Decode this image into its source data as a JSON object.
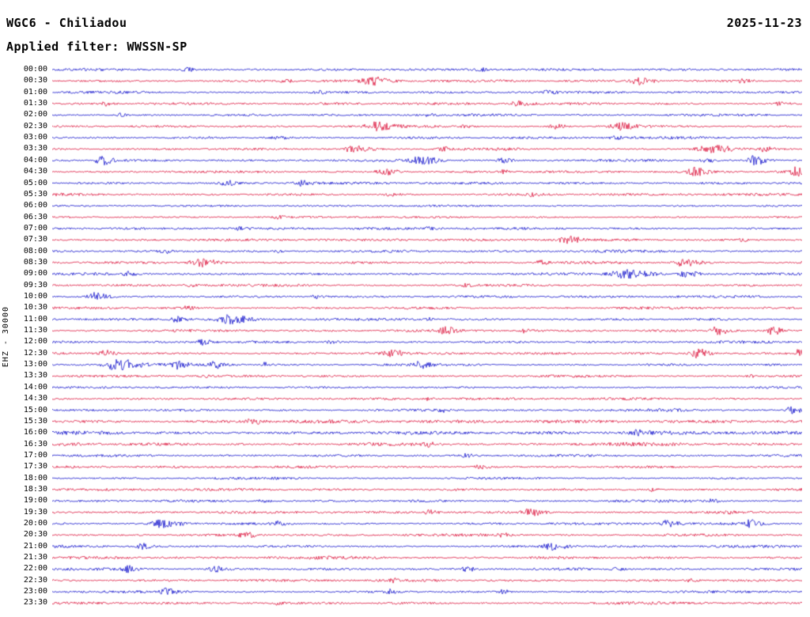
{
  "header": {
    "station": "WGC6 - Chiliadou",
    "date": "2025-11-23",
    "filter": "Applied filter: WWSSN-SP"
  },
  "axis": {
    "left_label": "EHZ - 30000"
  },
  "chart_data": {
    "type": "line",
    "subtype": "helicorder",
    "title": "WGC6 - Chiliadou",
    "subtitle": "Applied filter: WWSSN-SP",
    "date": "2025-11-23",
    "channel": "EHZ",
    "scale": 30000,
    "rows": 48,
    "minutes_per_row": 30,
    "x_range_minutes": [
      0,
      30
    ],
    "colors": {
      "even": "#1111cc",
      "odd": "#dc143c"
    },
    "base_noise_amp": 1.25,
    "clip": 6.9,
    "row_labels": [
      "00:00",
      "00:30",
      "01:00",
      "01:30",
      "02:00",
      "02:30",
      "03:00",
      "03:30",
      "04:00",
      "04:30",
      "05:00",
      "05:30",
      "06:00",
      "06:30",
      "07:00",
      "07:30",
      "08:00",
      "08:30",
      "09:00",
      "09:30",
      "10:00",
      "10:30",
      "11:00",
      "11:30",
      "12:00",
      "12:30",
      "13:00",
      "13:30",
      "14:00",
      "14:30",
      "15:00",
      "15:30",
      "16:00",
      "16:30",
      "17:00",
      "17:30",
      "18:00",
      "18:30",
      "19:00",
      "19:30",
      "20:00",
      "20:30",
      "21:00",
      "21:30",
      "22:00",
      "22:30",
      "23:00",
      "23:30"
    ],
    "noise_mult": {
      "12": 0.8,
      "13": 0.8,
      "28": 0.85,
      "31": 1.35,
      "32": 1.45,
      "33": 1.35,
      "36": 0.9,
      "43": 1.15,
      "47": 1.05
    },
    "events": [
      [
        0,
        0.18,
        2.2,
        0.01
      ],
      [
        0,
        0.57,
        2.0,
        0.008
      ],
      [
        1,
        0.31,
        2.2,
        0.008
      ],
      [
        1,
        0.425,
        4.5,
        0.018
      ],
      [
        1,
        0.78,
        4.2,
        0.015
      ],
      [
        1,
        0.92,
        2.2,
        0.008
      ],
      [
        2,
        0.35,
        2.0,
        0.01
      ],
      [
        2,
        0.66,
        2.0,
        0.008
      ],
      [
        3,
        0.07,
        2.5,
        0.008
      ],
      [
        3,
        0.62,
        3.0,
        0.012
      ],
      [
        3,
        0.97,
        2.5,
        0.008
      ],
      [
        4,
        0.09,
        2.2,
        0.006
      ],
      [
        4,
        0.5,
        1.8,
        0.006
      ],
      [
        5,
        0.43,
        4.5,
        0.018
      ],
      [
        5,
        0.55,
        2.5,
        0.008
      ],
      [
        5,
        0.67,
        3.0,
        0.01
      ],
      [
        5,
        0.755,
        4.2,
        0.014
      ],
      [
        6,
        0.3,
        1.8,
        0.01
      ],
      [
        6,
        0.75,
        1.8,
        0.008
      ],
      [
        7,
        0.4,
        4.0,
        0.018
      ],
      [
        7,
        0.52,
        2.5,
        0.008
      ],
      [
        7,
        0.875,
        5.0,
        0.02
      ],
      [
        7,
        0.95,
        3.0,
        0.008
      ],
      [
        8,
        0.065,
        5.5,
        0.012
      ],
      [
        8,
        0.49,
        4.5,
        0.02
      ],
      [
        8,
        0.6,
        3.0,
        0.01
      ],
      [
        8,
        0.87,
        3.0,
        0.008
      ],
      [
        8,
        0.935,
        6.0,
        0.012
      ],
      [
        9,
        0.44,
        4.0,
        0.015
      ],
      [
        9,
        0.6,
        2.5,
        0.008
      ],
      [
        9,
        0.855,
        5.5,
        0.012
      ],
      [
        9,
        0.99,
        5.5,
        0.008
      ],
      [
        10,
        0.23,
        3.5,
        0.01
      ],
      [
        10,
        0.33,
        3.0,
        0.012
      ],
      [
        11,
        0.45,
        2.2,
        0.008
      ],
      [
        11,
        0.64,
        2.0,
        0.008
      ],
      [
        13,
        0.3,
        1.8,
        0.006
      ],
      [
        14,
        0.25,
        2.0,
        0.008
      ],
      [
        14,
        0.5,
        1.8,
        0.006
      ],
      [
        15,
        0.685,
        4.5,
        0.015
      ],
      [
        15,
        0.92,
        2.2,
        0.006
      ],
      [
        16,
        0.15,
        2.0,
        0.008
      ],
      [
        16,
        0.3,
        1.8,
        0.006
      ],
      [
        17,
        0.195,
        5.5,
        0.018
      ],
      [
        17,
        0.65,
        3.0,
        0.01
      ],
      [
        17,
        0.84,
        5.0,
        0.018
      ],
      [
        18,
        0.1,
        2.5,
        0.008
      ],
      [
        18,
        0.76,
        5.5,
        0.025
      ],
      [
        18,
        0.845,
        4.5,
        0.012
      ],
      [
        19,
        0.18,
        2.2,
        0.008
      ],
      [
        19,
        0.55,
        2.0,
        0.006
      ],
      [
        20,
        0.055,
        5.0,
        0.015
      ],
      [
        20,
        0.35,
        2.0,
        0.006
      ],
      [
        21,
        0.18,
        2.2,
        0.008
      ],
      [
        22,
        0.165,
        3.5,
        0.01
      ],
      [
        22,
        0.235,
        5.0,
        0.02
      ],
      [
        22,
        0.5,
        2.2,
        0.006
      ],
      [
        23,
        0.525,
        4.0,
        0.012
      ],
      [
        23,
        0.63,
        2.5,
        0.008
      ],
      [
        23,
        0.885,
        5.5,
        0.012
      ],
      [
        23,
        0.96,
        5.0,
        0.01
      ],
      [
        24,
        0.2,
        3.5,
        0.01
      ],
      [
        24,
        0.37,
        2.5,
        0.008
      ],
      [
        25,
        0.07,
        3.5,
        0.01
      ],
      [
        25,
        0.45,
        4.0,
        0.012
      ],
      [
        25,
        0.86,
        5.5,
        0.012
      ],
      [
        25,
        0.995,
        5.0,
        0.006
      ],
      [
        26,
        0.085,
        7.0,
        0.025
      ],
      [
        26,
        0.165,
        4.5,
        0.01
      ],
      [
        26,
        0.215,
        4.0,
        0.01
      ],
      [
        26,
        0.28,
        3.0,
        0.008
      ],
      [
        26,
        0.49,
        3.5,
        0.01
      ],
      [
        27,
        0.2,
        2.0,
        0.006
      ],
      [
        27,
        0.93,
        1.8,
        0.006
      ],
      [
        29,
        0.5,
        1.8,
        0.006
      ],
      [
        30,
        0.52,
        2.5,
        0.008
      ],
      [
        30,
        0.985,
        4.0,
        0.012
      ],
      [
        31,
        0.265,
        3.5,
        0.012
      ],
      [
        32,
        0.78,
        2.5,
        0.008
      ],
      [
        33,
        0.5,
        2.2,
        0.008
      ],
      [
        34,
        0.55,
        2.5,
        0.008
      ],
      [
        35,
        0.57,
        2.5,
        0.01
      ],
      [
        37,
        0.8,
        2.0,
        0.006
      ],
      [
        38,
        0.28,
        2.2,
        0.008
      ],
      [
        38,
        0.88,
        2.2,
        0.006
      ],
      [
        39,
        0.5,
        3.0,
        0.01
      ],
      [
        39,
        0.635,
        5.5,
        0.015
      ],
      [
        39,
        0.9,
        2.2,
        0.006
      ],
      [
        40,
        0.145,
        5.0,
        0.02
      ],
      [
        40,
        0.3,
        2.5,
        0.008
      ],
      [
        40,
        0.82,
        4.0,
        0.01
      ],
      [
        40,
        0.93,
        4.0,
        0.01
      ],
      [
        41,
        0.255,
        3.5,
        0.012
      ],
      [
        41,
        0.6,
        2.2,
        0.008
      ],
      [
        42,
        0.12,
        3.5,
        0.01
      ],
      [
        42,
        0.665,
        5.0,
        0.015
      ],
      [
        44,
        0.1,
        3.5,
        0.01
      ],
      [
        44,
        0.215,
        3.5,
        0.01
      ],
      [
        44,
        0.55,
        3.5,
        0.01
      ],
      [
        44,
        0.75,
        2.5,
        0.008
      ],
      [
        45,
        0.45,
        2.2,
        0.008
      ],
      [
        45,
        0.85,
        2.2,
        0.008
      ],
      [
        46,
        0.15,
        3.5,
        0.012
      ],
      [
        46,
        0.45,
        2.5,
        0.008
      ],
      [
        46,
        0.6,
        2.2,
        0.008
      ],
      [
        47,
        0.3,
        1.8,
        0.006
      ]
    ]
  }
}
